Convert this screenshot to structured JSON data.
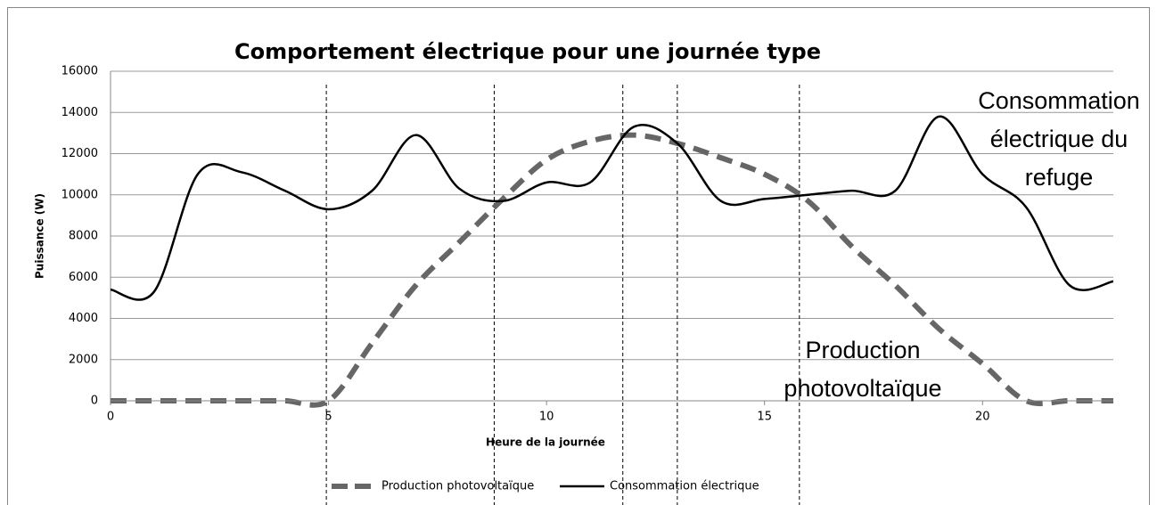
{
  "chart_data": {
    "type": "line",
    "title": "Comportement électrique pour une journée type",
    "x_label": "Heure de la journée",
    "y_label": "Puissance (W)",
    "x": [
      0,
      1,
      2,
      3,
      4,
      5,
      6,
      7,
      8,
      9,
      10,
      11,
      12,
      13,
      14,
      15,
      16,
      17,
      18,
      19,
      20,
      21,
      22,
      23
    ],
    "series": [
      {
        "name": "Production photovoltaïque",
        "color": "#666666",
        "dashed": true,
        "values": [
          0,
          0,
          0,
          0,
          0,
          0,
          2800,
          5600,
          7700,
          9800,
          11700,
          12600,
          12900,
          12500,
          11800,
          11000,
          9700,
          7500,
          5600,
          3500,
          1800,
          0,
          0,
          0
        ]
      },
      {
        "name": "Consommation électrique",
        "color": "#000000",
        "dashed": false,
        "values": [
          5400,
          5300,
          11000,
          11100,
          10200,
          9300,
          10200,
          12900,
          10300,
          9700,
          10600,
          10600,
          13300,
          12500,
          9700,
          9800,
          10000,
          10200,
          10200,
          13800,
          11000,
          9400,
          5600,
          5800
        ]
      }
    ],
    "vlines": [
      4.95,
      8.8,
      11.75,
      13,
      15.8
    ],
    "annotations": [
      [
        "Consommation",
        "électrique du",
        "refuge"
      ],
      [
        "Production",
        "photovoltaïque"
      ]
    ],
    "xlim": [
      0,
      23
    ],
    "xticks": [
      0,
      5,
      10,
      15,
      20
    ],
    "ylim": [
      0,
      16000
    ],
    "yticks": [
      0,
      2000,
      4000,
      6000,
      8000,
      10000,
      12000,
      14000,
      16000
    ],
    "grid": true,
    "legend": "bottom"
  }
}
